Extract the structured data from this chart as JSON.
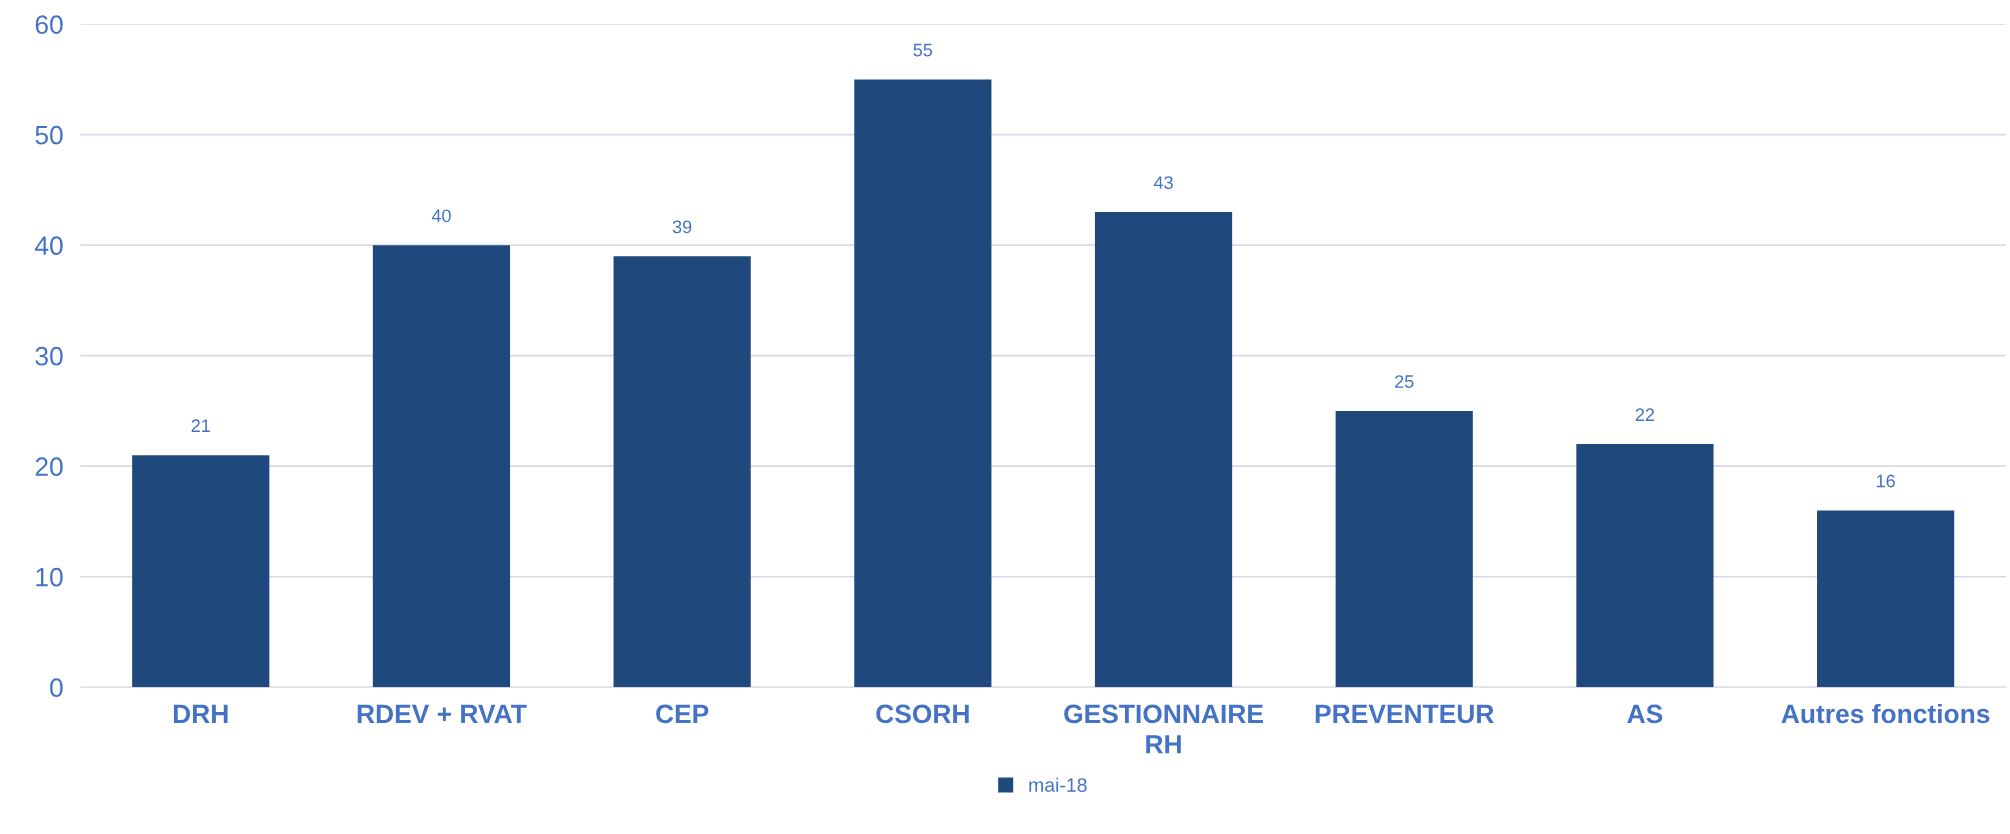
{
  "chart_data": {
    "type": "bar",
    "categories": [
      "DRH",
      "RDEV + RVAT",
      "CEP",
      "CSORH",
      "GESTIONNAIRE\nRH",
      "PREVENTEUR",
      "AS",
      "Autres fonctions"
    ],
    "series": [
      {
        "name": "mai-18",
        "color": "#1f497d",
        "values": [
          21,
          40,
          39,
          55,
          43,
          25,
          22,
          16
        ]
      }
    ],
    "ylim": [
      0,
      60
    ],
    "yticks": [
      0,
      10,
      20,
      30,
      40,
      50,
      60
    ],
    "grid": "y",
    "legend": "bottom",
    "data_labels": true
  }
}
